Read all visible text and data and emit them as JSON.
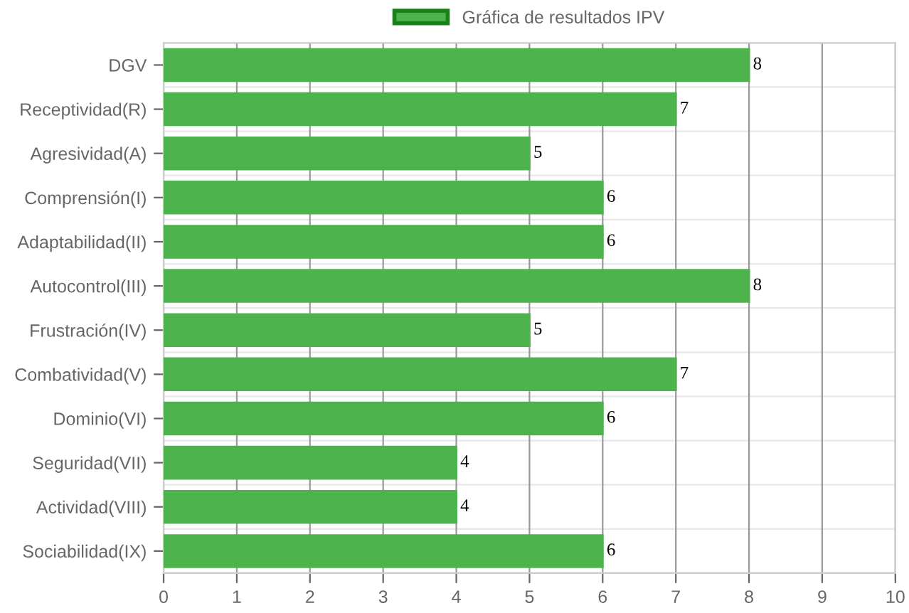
{
  "chart_data": {
    "type": "bar",
    "orientation": "horizontal",
    "categories": [
      "DGV",
      "Receptividad(R)",
      "Agresividad(A)",
      "Comprensión(I)",
      "Adaptabilidad(II)",
      "Autocontrol(III)",
      "Frustración(IV)",
      "Combatividad(V)",
      "Dominio(VI)",
      "Seguridad(VII)",
      "Actividad(VIII)",
      "Sociabilidad(IX)"
    ],
    "series": [
      {
        "name": "Gráfica de resultados IPV",
        "color": "#4db34d",
        "values": [
          8,
          7,
          5,
          6,
          6,
          8,
          5,
          7,
          6,
          4,
          4,
          6
        ]
      }
    ],
    "xlim": [
      0,
      10
    ],
    "xticks": [
      0,
      1,
      2,
      3,
      4,
      5,
      6,
      7,
      8,
      9,
      10
    ],
    "grid": true,
    "legend": "top",
    "data_labels": true
  }
}
